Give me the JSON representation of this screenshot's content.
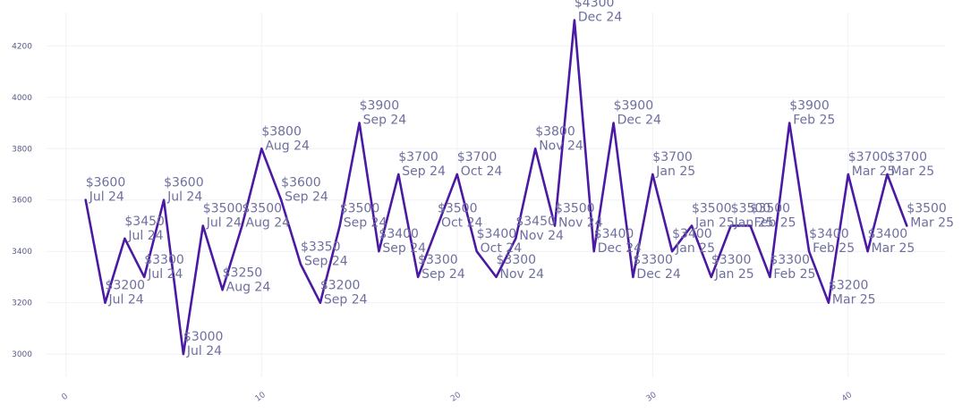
{
  "chart_data": {
    "type": "line",
    "title": "",
    "xlabel": "",
    "ylabel": "",
    "xlim": [
      -1,
      45
    ],
    "ylim": [
      2910,
      4330
    ],
    "x_ticks": [
      0,
      10,
      20,
      30,
      40
    ],
    "y_ticks": [
      3000,
      3200,
      3400,
      3600,
      3800,
      4000,
      4200
    ],
    "grid": true,
    "legend": "none",
    "line_color": "#4b1aa3",
    "label_color": "#6f6fa0",
    "series": [
      {
        "x": [
          1,
          2,
          3,
          4,
          5,
          6,
          7,
          8,
          9,
          10,
          11,
          12,
          13,
          14,
          15,
          16,
          17,
          18,
          19,
          20,
          21,
          22,
          23,
          24,
          25,
          26,
          27,
          28,
          29,
          30,
          31,
          32,
          33,
          34,
          35,
          36,
          37,
          38,
          39,
          40,
          41,
          42,
          43
        ],
        "values": [
          3600,
          3200,
          3450,
          3300,
          3600,
          3000,
          3500,
          3250,
          3500,
          3800,
          3600,
          3350,
          3200,
          3500,
          3900,
          3400,
          3700,
          3300,
          3500,
          3700,
          3400,
          3300,
          3450,
          3800,
          3500,
          4300,
          3400,
          3900,
          3300,
          3700,
          3400,
          3500,
          3300,
          3500,
          3500,
          3300,
          3900,
          3400,
          3200,
          3700,
          3400,
          3700,
          3500
        ],
        "labels": [
          "$3600",
          "$3200",
          "$3450",
          "$3300",
          "$3600",
          "$3000",
          "$3500",
          "$3250",
          "$3500",
          "$3800",
          "$3600",
          "$3350",
          "$3200",
          "$3500",
          "$3900",
          "$3400",
          "$3700",
          "$3300",
          "$3500",
          "$3700",
          "$3400",
          "$3300",
          "$3450",
          "$3800",
          "$3500",
          "$4300",
          "$3400",
          "$3900",
          "$3300",
          "$3700",
          "$3400",
          "$3500",
          "$3300",
          "$3500",
          "$3500",
          "$3300",
          "$3900",
          "$3400",
          "$3200",
          "$3700",
          "$3400",
          "$3700",
          "$3500"
        ],
        "sublabels": [
          "Jul 24",
          "Jul 24",
          "Jul 24",
          "Jul 24",
          "Jul 24",
          "Jul 24",
          "Jul 24",
          "Aug 24",
          "Aug 24",
          "Aug 24",
          "Sep 24",
          "Sep 24",
          "Sep 24",
          "Sep 24",
          "Sep 24",
          "Sep 24",
          "Sep 24",
          "Sep 24",
          "Oct 24",
          "Oct 24",
          "Oct 24",
          "Nov 24",
          "Nov 24",
          "Nov 24",
          "Nov 24",
          "Dec 24",
          "Dec 24",
          "Dec 24",
          "Dec 24",
          "Jan 25",
          "Jan 25",
          "Jan 25",
          "Jan 25",
          "Jan 25",
          "Feb 25",
          "Feb 25",
          "Feb 25",
          "Feb 25",
          "Mar 25",
          "Mar 25",
          "Mar 25",
          "Mar 25",
          "Mar 25"
        ]
      }
    ]
  }
}
